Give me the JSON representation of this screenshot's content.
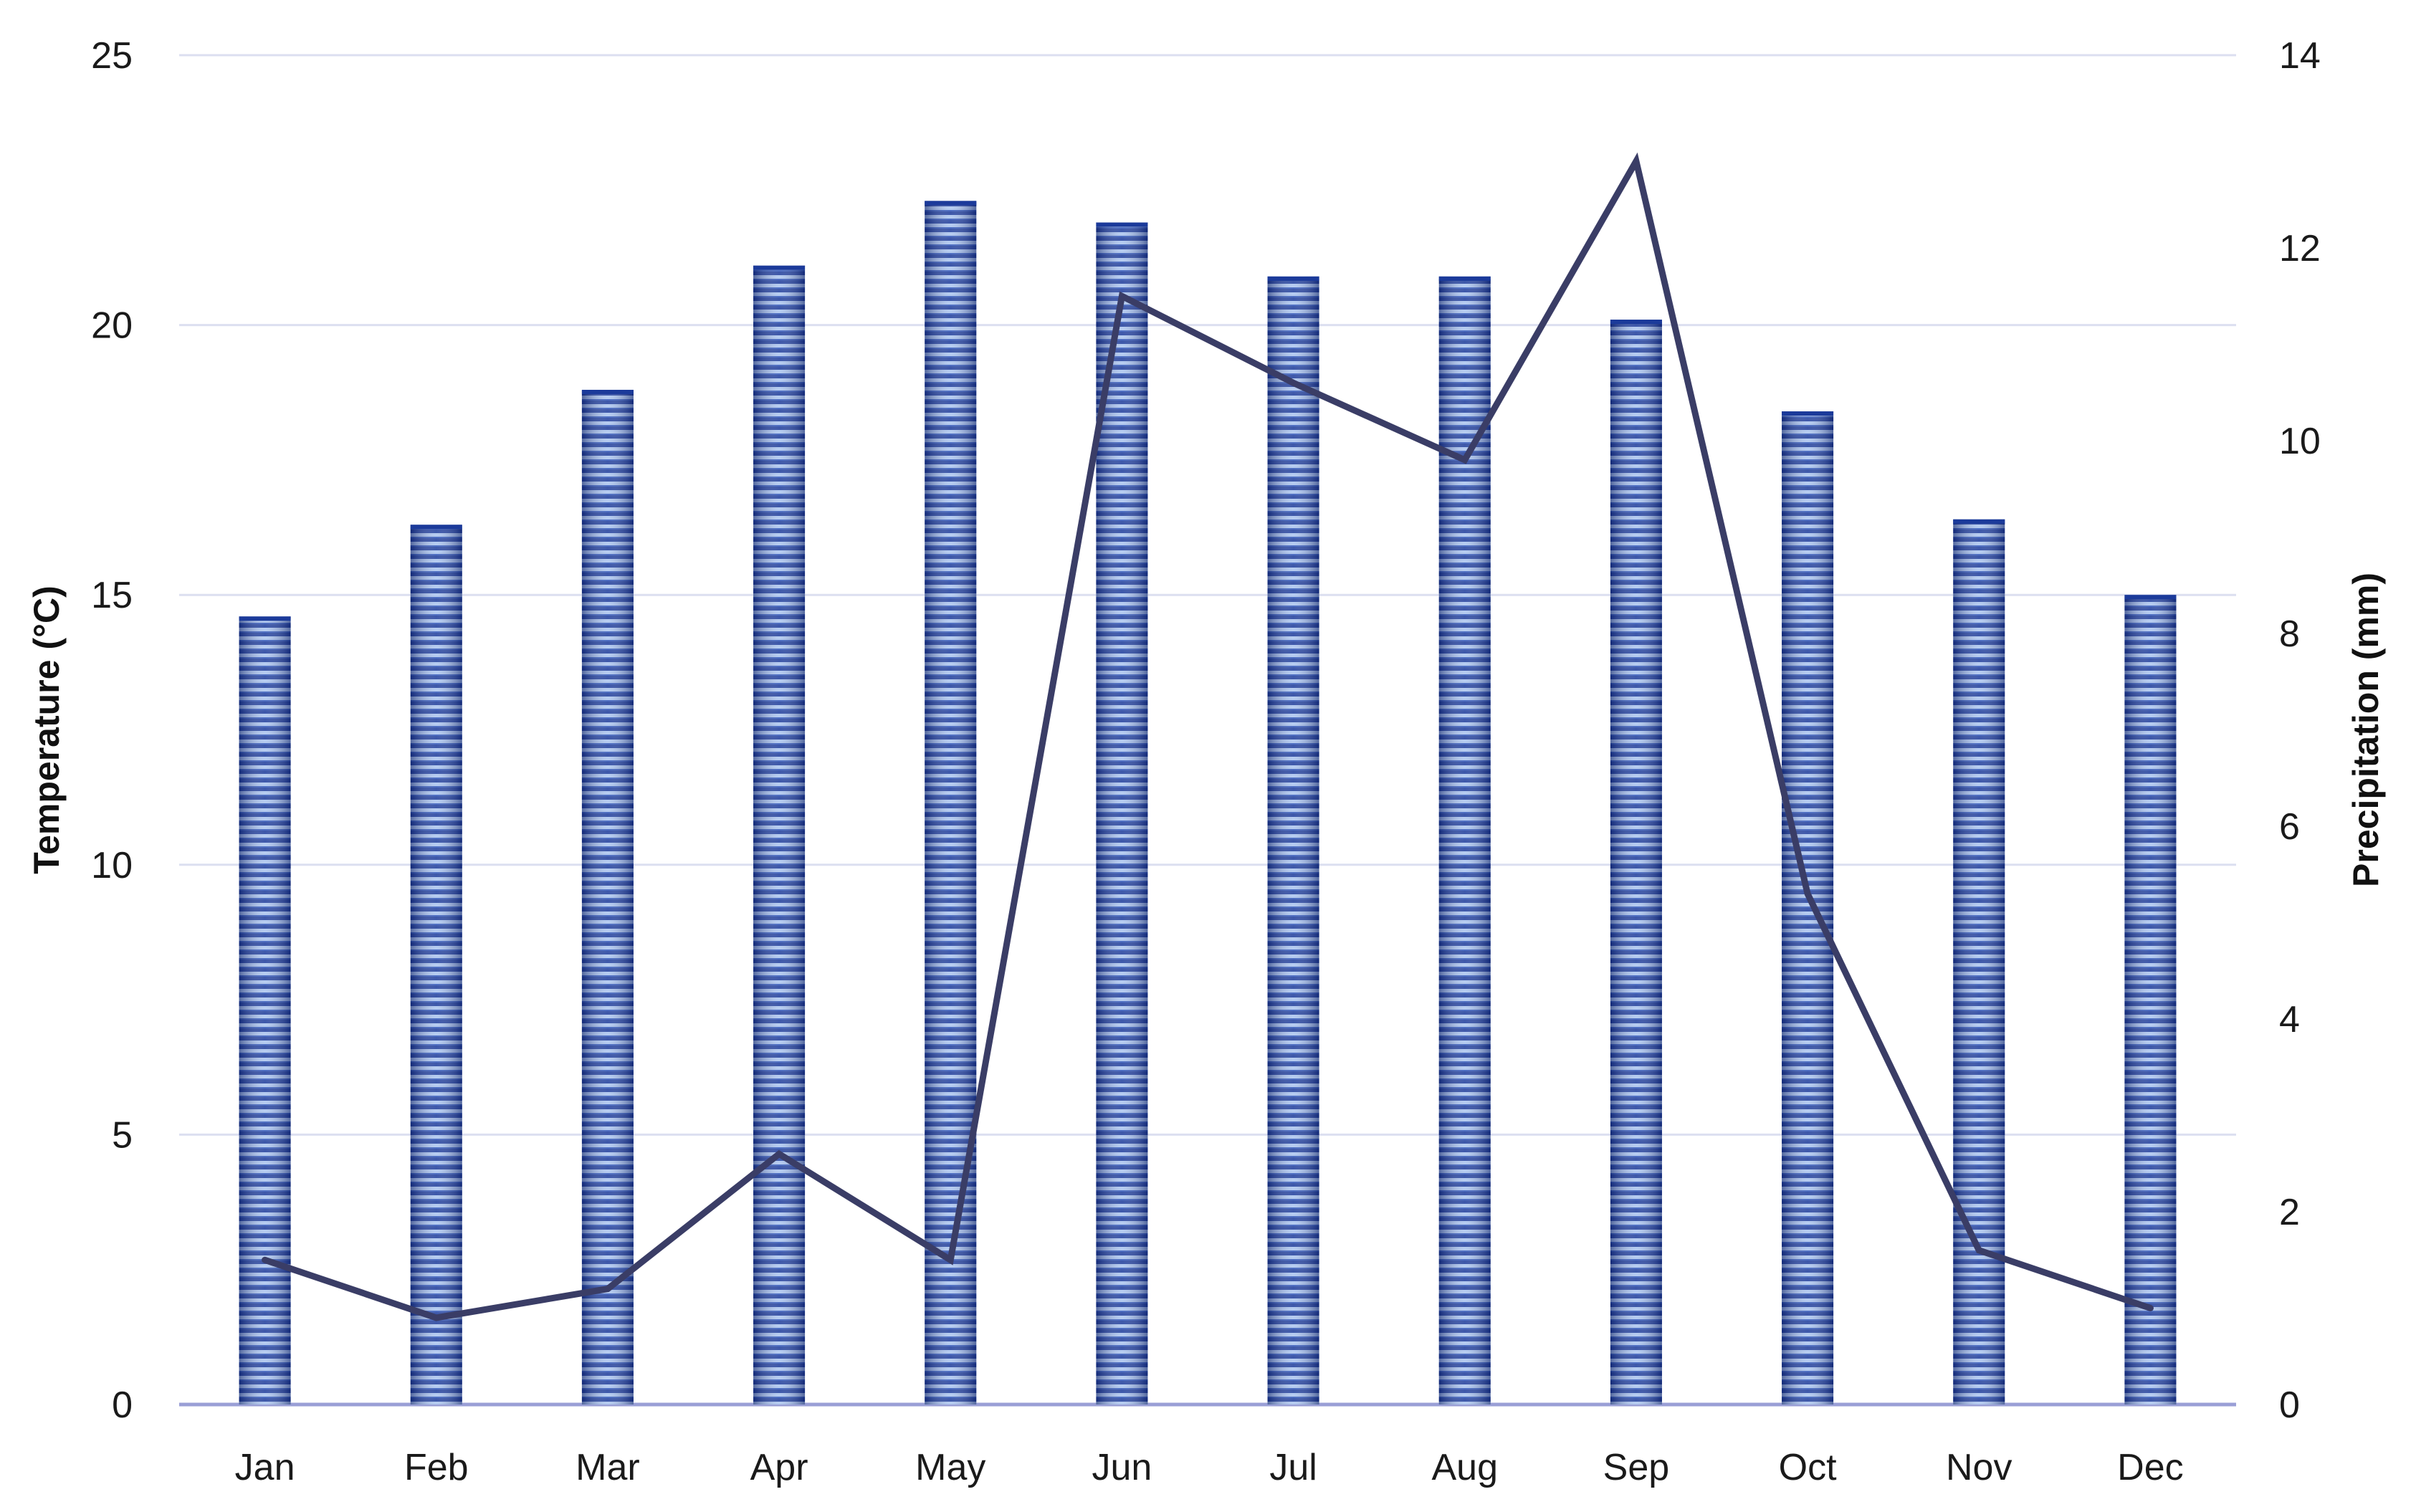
{
  "chart_data": {
    "type": "bar+line",
    "categories": [
      "Jan",
      "Feb",
      "Mar",
      "Apr",
      "May",
      "Jun",
      "Jul",
      "Aug",
      "Sep",
      "Oct",
      "Nov",
      "Dec"
    ],
    "series": [
      {
        "type": "bar",
        "axis": "left",
        "values": [
          14.6,
          16.3,
          18.8,
          21.1,
          22.3,
          21.9,
          20.9,
          20.9,
          20.1,
          18.4,
          16.4,
          15.0
        ]
      },
      {
        "type": "line",
        "axis": "right",
        "values": [
          1.5,
          0.9,
          1.2,
          2.6,
          1.5,
          11.5,
          10.6,
          9.8,
          12.9,
          5.3,
          1.6,
          1.0
        ]
      }
    ],
    "left_axis": {
      "label": "Temperature (°C)",
      "min": 0,
      "max": 25,
      "ticks": [
        "0",
        "5",
        "10",
        "15",
        "20",
        "25"
      ]
    },
    "right_axis": {
      "label": "Precipitation (mm)",
      "min": 0,
      "max": 14,
      "ticks": [
        "0",
        "2",
        "4",
        "6",
        "8",
        "10",
        "12",
        "14"
      ]
    },
    "grid": true,
    "legend": "none",
    "colors": {
      "bar_light": "#a9c3ee",
      "bar_dark": "#1b3a9a",
      "line": "#3a3d66",
      "grid": "#dcdff0",
      "baseline": "#9a9fd6"
    }
  }
}
